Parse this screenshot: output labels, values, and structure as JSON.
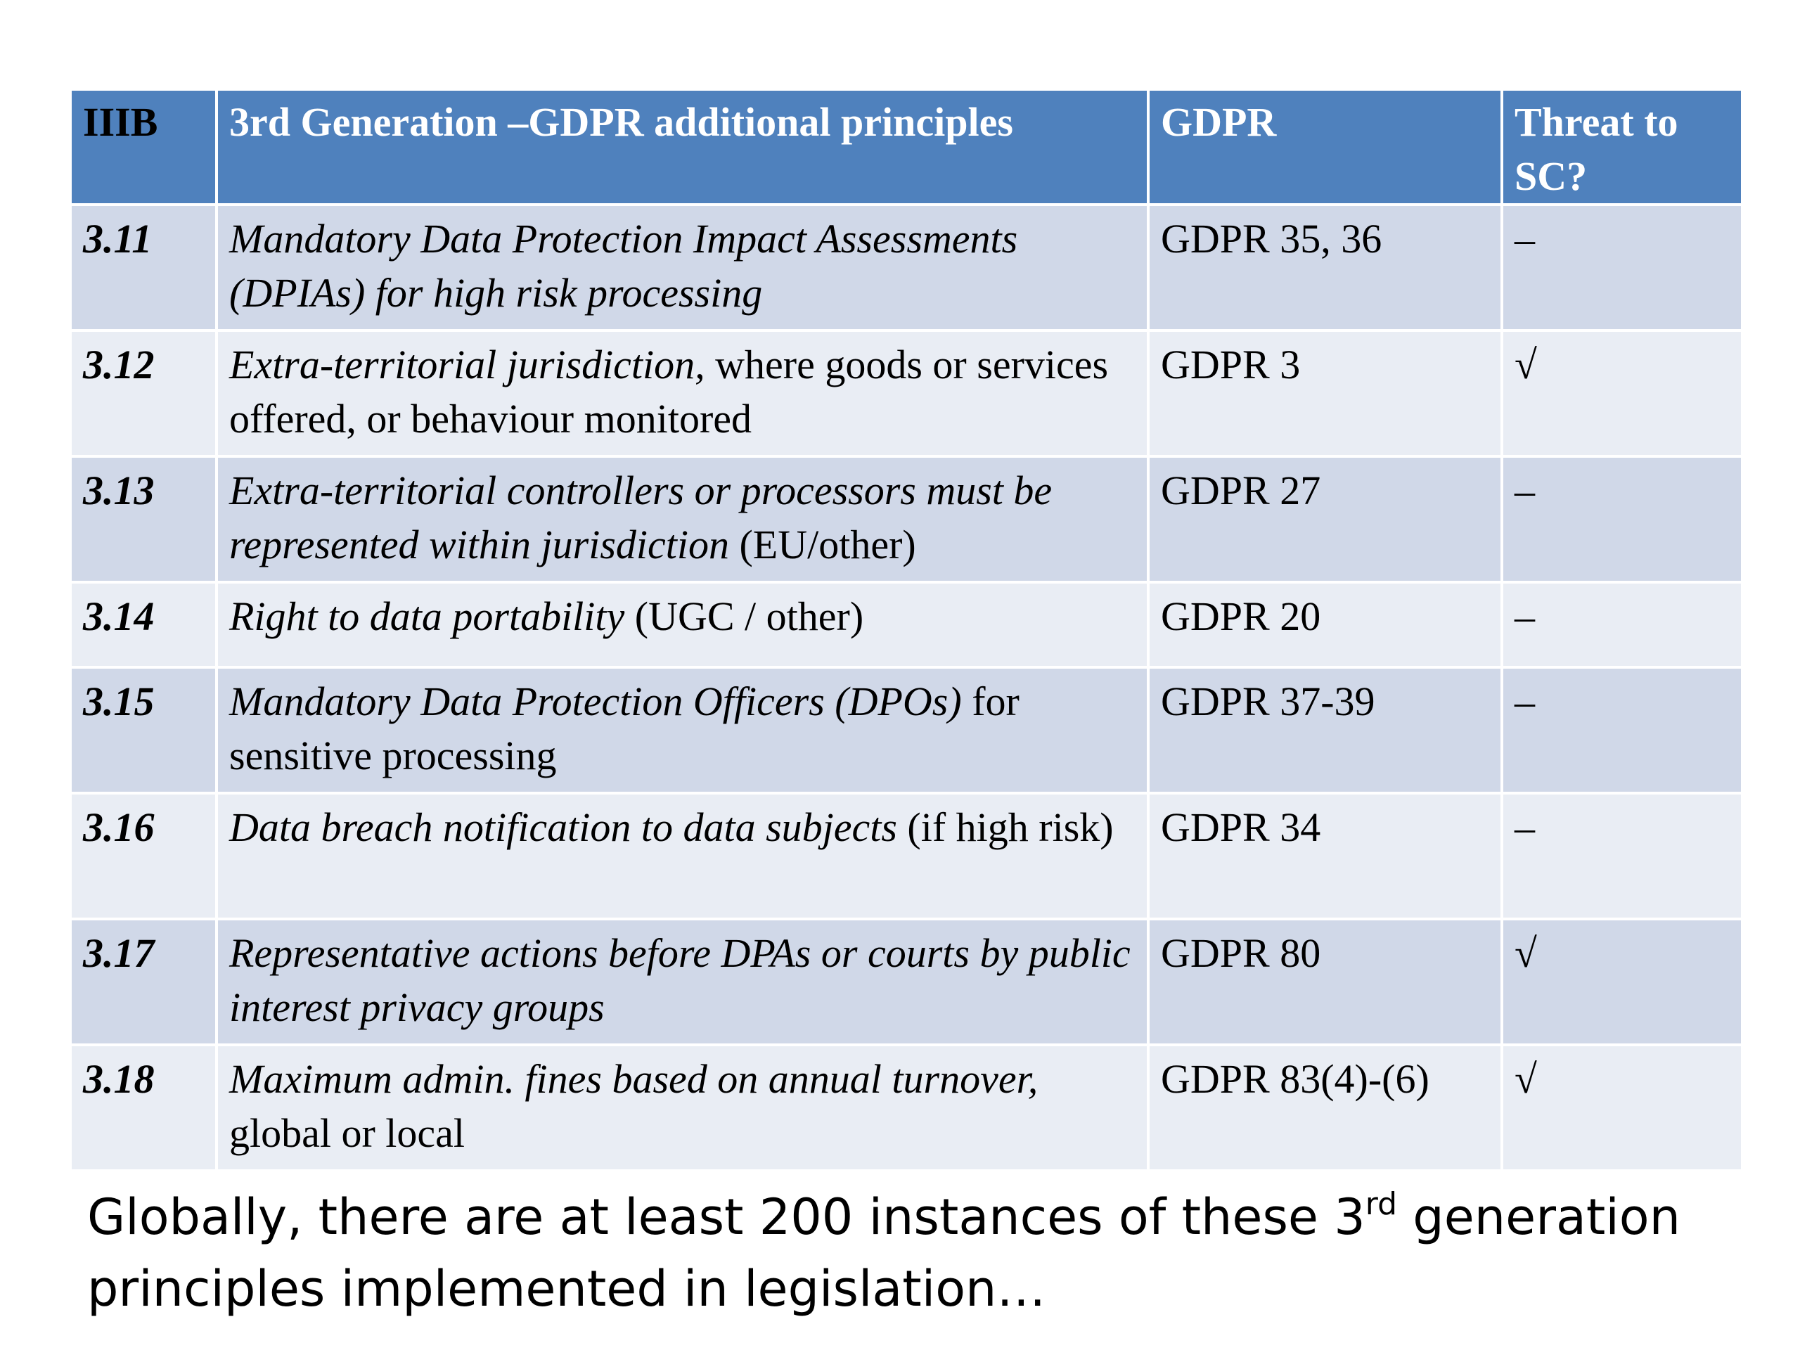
{
  "table": {
    "headers": {
      "num": "IIIB",
      "principle": "3rd Generation –GDPR additional principles",
      "gdpr": "GDPR",
      "threat": "Threat to SC?"
    },
    "rows": [
      {
        "num": "3.11",
        "principle_italic": "Mandatory Data Protection Impact Assessments (DPIAs) for high risk processing",
        "principle_plain": "",
        "gdpr": "GDPR 35, 36",
        "threat": "–"
      },
      {
        "num": "3.12",
        "principle_italic": "Extra-territorial jurisdiction,",
        "principle_plain": " where goods or services offered, or behaviour monitored",
        "gdpr": "GDPR 3",
        "threat": "√"
      },
      {
        "num": "3.13",
        "principle_italic": "Extra-territorial controllers or processors must be represented within jurisdiction",
        "principle_plain": "  (EU/other)",
        "gdpr": "GDPR 27",
        "threat": "–"
      },
      {
        "num": "3.14",
        "principle_italic": "Right to data portability",
        "principle_plain": " (UGC / other)",
        "gdpr": "GDPR 20",
        "threat": "–"
      },
      {
        "num": "3.15",
        "principle_italic": "Mandatory Data Protection Officers (DPOs)",
        "principle_plain": " for sensitive processing",
        "gdpr": "GDPR 37-39",
        "threat": "–"
      },
      {
        "num": "3.16",
        "principle_italic": "Data breach notification to data subjects",
        "principle_plain": " (if high risk)",
        "gdpr": "GDPR 34",
        "threat": "–"
      },
      {
        "num": "3.17",
        "principle_italic": "Representative actions before DPAs or courts by public interest privacy groups",
        "principle_plain": "",
        "gdpr": "GDPR 80",
        "threat": "√"
      },
      {
        "num": "3.18",
        "principle_italic": "Maximum admin. fines based on annual turnover,",
        "principle_plain": " global or local",
        "gdpr": "GDPR 83(4)-(6)",
        "threat": "√"
      }
    ]
  },
  "caption": {
    "before": "Globally, there are at least 200 instances of these 3",
    "sup": "rd",
    "after": " generation principles implemented in legislation…"
  },
  "colors": {
    "header_bg": "#4f81bd",
    "row_odd_bg": "#d0d8e8",
    "row_even_bg": "#e9edf4"
  }
}
